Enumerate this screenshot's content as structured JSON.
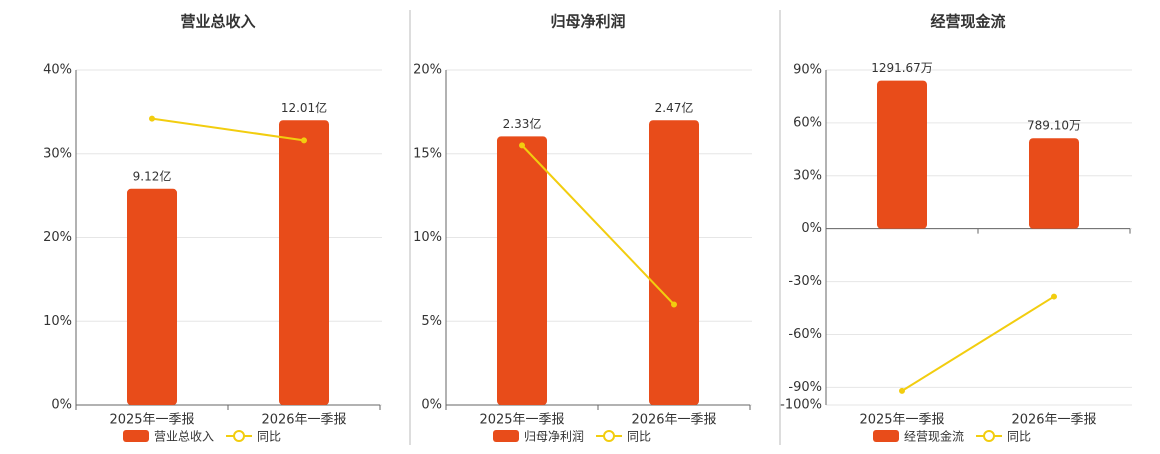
{
  "chart_data": [
    {
      "type": "bar",
      "title": "营业总收入",
      "categories": [
        "2025年一季报",
        "2026年一季报"
      ],
      "series": [
        {
          "name": "营业总收入",
          "type": "bar",
          "axis": "y2",
          "color": "#e84c1a",
          "values": [
            9.12,
            12.01
          ],
          "value_labels": [
            "9.12亿",
            "12.01亿"
          ]
        },
        {
          "name": "同比",
          "type": "line",
          "color": "#f2cd0f",
          "values": [
            34.2,
            31.6
          ]
        }
      ],
      "ylim": [
        0,
        40
      ],
      "yticks": [
        {
          "value": 0,
          "label": "0%"
        },
        {
          "value": 10,
          "label": "10%"
        },
        {
          "value": 20,
          "label": "20%"
        },
        {
          "value": 30,
          "label": "30%"
        },
        {
          "value": 40,
          "label": "40%"
        }
      ],
      "y2lim": [
        0,
        14.13
      ],
      "grid": true,
      "legend": "bottom"
    },
    {
      "type": "bar",
      "title": "归母净利润",
      "categories": [
        "2025年一季报",
        "2026年一季报"
      ],
      "series": [
        {
          "name": "归母净利润",
          "type": "bar",
          "axis": "y2",
          "color": "#e84c1a",
          "values": [
            2.33,
            2.47
          ],
          "value_labels": [
            "2.33亿",
            "2.47亿"
          ]
        },
        {
          "name": "同比",
          "type": "line",
          "color": "#f2cd0f",
          "values": [
            15.5,
            6.0
          ]
        }
      ],
      "ylim": [
        0,
        20
      ],
      "yticks": [
        {
          "value": 0,
          "label": "0%"
        },
        {
          "value": 5,
          "label": "5%"
        },
        {
          "value": 10,
          "label": "10%"
        },
        {
          "value": 15,
          "label": "15%"
        },
        {
          "value": 20,
          "label": "20%"
        }
      ],
      "y2lim": [
        0,
        2.906
      ],
      "grid": true,
      "legend": "bottom"
    },
    {
      "type": "bar",
      "title": "经营现金流",
      "categories": [
        "2025年一季报",
        "2026年一季报"
      ],
      "series": [
        {
          "name": "经营现金流",
          "type": "bar",
          "axis": "y2",
          "color": "#e84c1a",
          "values": [
            1291.67,
            789.1
          ],
          "value_labels": [
            "1291.67万",
            "789.10万"
          ]
        },
        {
          "name": "同比",
          "type": "line",
          "color": "#f2cd0f",
          "values": [
            -92,
            -38.5
          ]
        }
      ],
      "ylim": [
        -100,
        90
      ],
      "yticks": [
        {
          "value": -100,
          "label": "-100%"
        },
        {
          "value": -90,
          "label": "-90%"
        },
        {
          "value": -60,
          "label": "-60%"
        },
        {
          "value": -30,
          "label": "-30%"
        },
        {
          "value": 0,
          "label": "0%"
        },
        {
          "value": 30,
          "label": "30%"
        },
        {
          "value": 60,
          "label": "60%"
        },
        {
          "value": 90,
          "label": "90%"
        }
      ],
      "y2lim": [
        -1537.7,
        1383.9
      ],
      "grid": true,
      "legend": "bottom"
    }
  ]
}
